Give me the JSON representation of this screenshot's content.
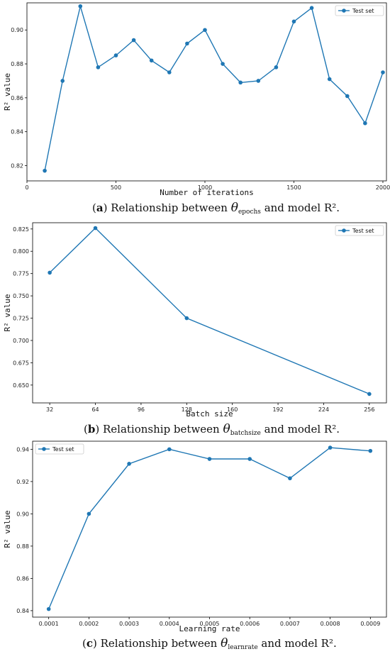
{
  "panels": [
    {
      "chart_data": {
        "type": "line",
        "xlabel": "Number of iterations",
        "ylabel": "R² value",
        "xlim": [
          0,
          2020
        ],
        "ylim": [
          0.811,
          0.916
        ],
        "xticks": [
          0,
          500,
          1000,
          1500,
          2000
        ],
        "yticks": [
          0.82,
          0.84,
          0.86,
          0.88,
          0.9
        ],
        "ytick_decimals": 2,
        "legend_loc": "upper right",
        "series": [
          {
            "name": "Test set",
            "color": "#1f77b4",
            "x": [
              100,
              200,
              300,
              400,
              500,
              600,
              700,
              800,
              900,
              1000,
              1100,
              1200,
              1300,
              1400,
              1500,
              1600,
              1700,
              1800,
              1900,
              2000
            ],
            "y": [
              0.817,
              0.87,
              0.914,
              0.878,
              0.885,
              0.894,
              0.882,
              0.875,
              0.892,
              0.9,
              0.88,
              0.869,
              0.87,
              0.878,
              0.905,
              0.913,
              0.871,
              0.861,
              0.845,
              0.875
            ]
          }
        ]
      },
      "caption": {
        "prefix": "(",
        "letter": "a",
        "mid": ") Relationship between ",
        "theta": "θ",
        "sub": "epochs",
        "suffix": " and model R²."
      }
    },
    {
      "chart_data": {
        "type": "line",
        "xlabel": "Batch size",
        "ylabel": "R² value",
        "xlim": [
          20,
          268
        ],
        "ylim": [
          0.63,
          0.832
        ],
        "xticks": [
          32,
          64,
          96,
          128,
          160,
          192,
          224,
          256
        ],
        "yticks": [
          0.65,
          0.675,
          0.7,
          0.725,
          0.75,
          0.775,
          0.8,
          0.825
        ],
        "ytick_decimals": 3,
        "legend_loc": "upper right",
        "series": [
          {
            "name": "Test set",
            "color": "#1f77b4",
            "x": [
              32,
              64,
              128,
              256
            ],
            "y": [
              0.776,
              0.826,
              0.725,
              0.64
            ]
          }
        ]
      },
      "caption": {
        "prefix": "(",
        "letter": "b",
        "mid": ") Relationship between ",
        "theta": "θ",
        "sub": "batchsize",
        "suffix": " and model R²."
      }
    },
    {
      "chart_data": {
        "type": "line",
        "xlabel": "Learning rate",
        "ylabel": "R² value",
        "xlim": [
          6e-05,
          0.00094
        ],
        "ylim": [
          0.836,
          0.945
        ],
        "xticks": [
          0.0001,
          0.0002,
          0.0003,
          0.0004,
          0.0005,
          0.0006,
          0.0007,
          0.0008,
          0.0009
        ],
        "xtick_labels": [
          "0.0001",
          "0.0002",
          "0.0003",
          "0.0004",
          "0.0005",
          "0.0006",
          "0.0007",
          "0.0008",
          "0.0009"
        ],
        "yticks": [
          0.84,
          0.86,
          0.88,
          0.9,
          0.92,
          0.94
        ],
        "ytick_decimals": 2,
        "legend_loc": "upper left",
        "series": [
          {
            "name": "Test set",
            "color": "#1f77b4",
            "x": [
              0.0001,
              0.0002,
              0.0003,
              0.0004,
              0.0005,
              0.0006,
              0.0007,
              0.0008,
              0.0009
            ],
            "y": [
              0.841,
              0.9,
              0.931,
              0.94,
              0.934,
              0.934,
              0.922,
              0.941,
              0.939
            ]
          }
        ]
      },
      "caption": {
        "prefix": "(",
        "letter": "c",
        "mid": ") Relationship between ",
        "theta": "θ",
        "sub": "learnrate",
        "suffix": " and model R²."
      }
    }
  ]
}
